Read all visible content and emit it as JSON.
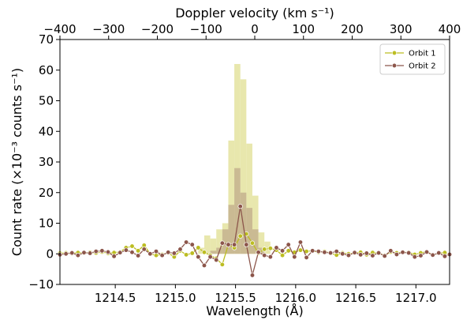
{
  "chart_data": {
    "type": "line",
    "xlabel": "Wavelength (Å)",
    "ylabel": "Count rate (×10⁻³ counts s⁻¹)",
    "top_xlabel": "Doppler velocity (km s⁻¹)",
    "xlim": [
      1214.04,
      1217.28
    ],
    "ylim": [
      -10,
      70
    ],
    "top_xlim": [
      -400,
      400
    ],
    "xticks": [
      1214.5,
      1215.0,
      1215.5,
      1216.0,
      1216.5,
      1217.0
    ],
    "xtick_labels": [
      "1214.5",
      "1215.0",
      "1215.5",
      "1216.0",
      "1216.5",
      "1217.0"
    ],
    "yticks": [
      -10,
      0,
      10,
      20,
      30,
      40,
      50,
      60,
      70
    ],
    "ytick_labels": [
      "−10",
      "0",
      "10",
      "20",
      "30",
      "40",
      "50",
      "60",
      "70"
    ],
    "top_xticks": [
      -400,
      -300,
      -200,
      -100,
      0,
      100,
      200,
      300,
      400
    ],
    "top_xtick_labels": [
      "−400",
      "−300",
      "−200",
      "−100",
      "0",
      "100",
      "200",
      "300",
      "400"
    ],
    "legend_position": "top-right",
    "grid": false,
    "histograms": [
      {
        "series": "Orbit 1",
        "color": "#e5e4a4",
        "bins": [
          {
            "x0": 1215.19,
            "x1": 1215.24,
            "value": 2
          },
          {
            "x0": 1215.24,
            "x1": 1215.29,
            "value": 6
          },
          {
            "x0": 1215.29,
            "x1": 1215.34,
            "value": 5
          },
          {
            "x0": 1215.34,
            "x1": 1215.39,
            "value": 8
          },
          {
            "x0": 1215.39,
            "x1": 1215.44,
            "value": 10
          },
          {
            "x0": 1215.44,
            "x1": 1215.49,
            "value": 37
          },
          {
            "x0": 1215.49,
            "x1": 1215.54,
            "value": 62
          },
          {
            "x0": 1215.54,
            "x1": 1215.59,
            "value": 57
          },
          {
            "x0": 1215.59,
            "x1": 1215.64,
            "value": 36
          },
          {
            "x0": 1215.64,
            "x1": 1215.69,
            "value": 19
          },
          {
            "x0": 1215.69,
            "x1": 1215.74,
            "value": 7
          },
          {
            "x0": 1215.74,
            "x1": 1215.79,
            "value": 4
          }
        ]
      },
      {
        "series": "Orbit 2",
        "color": "#c4b28e",
        "bins": [
          {
            "x0": 1215.29,
            "x1": 1215.34,
            "value": 1
          },
          {
            "x0": 1215.34,
            "x1": 1215.39,
            "value": 2
          },
          {
            "x0": 1215.39,
            "x1": 1215.44,
            "value": 8
          },
          {
            "x0": 1215.44,
            "x1": 1215.49,
            "value": 16
          },
          {
            "x0": 1215.49,
            "x1": 1215.54,
            "value": 28
          },
          {
            "x0": 1215.54,
            "x1": 1215.59,
            "value": 20
          },
          {
            "x0": 1215.59,
            "x1": 1215.64,
            "value": 15
          },
          {
            "x0": 1215.64,
            "x1": 1215.69,
            "value": 8
          },
          {
            "x0": 1215.69,
            "x1": 1215.74,
            "value": 2
          }
        ]
      }
    ],
    "series": [
      {
        "name": "Orbit 1",
        "color": "#bcbd22",
        "x": [
          1214.04,
          1214.09,
          1214.14,
          1214.19,
          1214.24,
          1214.29,
          1214.34,
          1214.39,
          1214.44,
          1214.49,
          1214.54,
          1214.59,
          1214.64,
          1214.69,
          1214.74,
          1214.79,
          1214.84,
          1214.89,
          1214.94,
          1214.99,
          1215.04,
          1215.09,
          1215.14,
          1215.19,
          1215.24,
          1215.29,
          1215.34,
          1215.39,
          1215.44,
          1215.49,
          1215.54,
          1215.59,
          1215.64,
          1215.69,
          1215.74,
          1215.79,
          1215.84,
          1215.89,
          1215.94,
          1215.99,
          1216.04,
          1216.09,
          1216.14,
          1216.19,
          1216.24,
          1216.29,
          1216.34,
          1216.39,
          1216.44,
          1216.49,
          1216.54,
          1216.59,
          1216.64,
          1216.69,
          1216.74,
          1216.79,
          1216.84,
          1216.89,
          1216.94,
          1216.99,
          1217.04,
          1217.09,
          1217.14,
          1217.19,
          1217.24,
          1217.28
        ],
        "y": [
          0.2,
          0.3,
          0.1,
          0.4,
          0.2,
          0.5,
          0.3,
          0.6,
          0.2,
          0.4,
          0.6,
          2.0,
          2.5,
          1.0,
          2.8,
          0.0,
          -0.5,
          -0.2,
          0.3,
          -1.0,
          1.0,
          -0.3,
          0.2,
          2.0,
          0.5,
          -0.5,
          -1.5,
          -3.5,
          3.0,
          2.0,
          5.8,
          6.5,
          3.5,
          0.2,
          1.5,
          1.8,
          1.2,
          -0.5,
          1.0,
          0.5,
          1.2,
          0.8,
          1.0,
          0.5,
          0.8,
          0.2,
          -0.4,
          0.3,
          0.0,
          0.2,
          0.5,
          -0.3,
          0.4,
          0.2,
          -0.5,
          0.6,
          0.3,
          0.4,
          0.5,
          -0.2,
          0.3,
          0.7,
          -0.4,
          0.2,
          0.4,
          -0.3
        ]
      },
      {
        "name": "Orbit 2",
        "color": "#8c564b",
        "x": [
          1214.04,
          1214.09,
          1214.14,
          1214.19,
          1214.24,
          1214.29,
          1214.34,
          1214.39,
          1214.44,
          1214.49,
          1214.54,
          1214.59,
          1214.64,
          1214.69,
          1214.74,
          1214.79,
          1214.84,
          1214.89,
          1214.94,
          1214.99,
          1215.04,
          1215.09,
          1215.14,
          1215.19,
          1215.24,
          1215.29,
          1215.34,
          1215.39,
          1215.44,
          1215.49,
          1215.54,
          1215.59,
          1215.64,
          1215.69,
          1215.74,
          1215.79,
          1215.84,
          1215.89,
          1215.94,
          1215.99,
          1216.04,
          1216.09,
          1216.14,
          1216.19,
          1216.24,
          1216.29,
          1216.34,
          1216.39,
          1216.44,
          1216.49,
          1216.54,
          1216.59,
          1216.64,
          1216.69,
          1216.74,
          1216.79,
          1216.84,
          1216.89,
          1216.94,
          1216.99,
          1217.04,
          1217.09,
          1217.14,
          1217.19,
          1217.24,
          1217.28
        ],
        "y": [
          -0.3,
          0.0,
          0.3,
          -0.5,
          0.4,
          0.2,
          0.8,
          1.0,
          0.6,
          -0.8,
          0.4,
          1.2,
          0.5,
          -0.6,
          1.5,
          0.0,
          0.8,
          -0.5,
          0.5,
          0.2,
          1.5,
          3.8,
          3.0,
          -1.0,
          -3.8,
          -1.0,
          -2.0,
          3.5,
          3.0,
          3.0,
          15.5,
          3.0,
          -7.0,
          0.5,
          -0.5,
          -1.0,
          2.0,
          1.0,
          3.0,
          -1.0,
          3.8,
          -1.2,
          1.0,
          0.8,
          0.5,
          0.3,
          0.8,
          0.0,
          -0.5,
          0.4,
          -0.3,
          0.2,
          -0.6,
          0.3,
          -0.7,
          1.0,
          -0.2,
          0.5,
          0.3,
          -1.0,
          -0.6,
          0.6,
          -0.4,
          0.3,
          -0.8,
          -0.2
        ]
      }
    ]
  }
}
